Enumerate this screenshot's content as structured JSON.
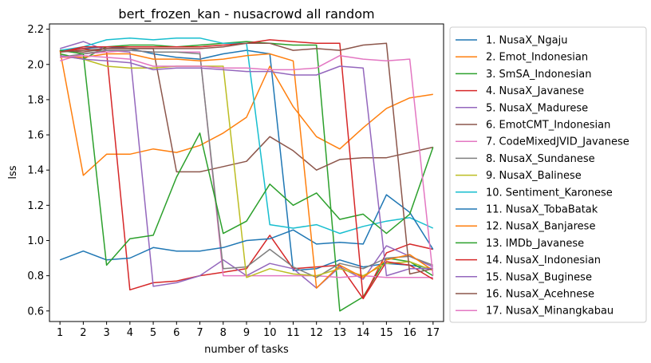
{
  "chart_data": {
    "type": "line",
    "title": "bert_frozen_kan - nusacrowd all random",
    "xlabel": "number of tasks",
    "ylabel": "lss",
    "x": [
      1,
      2,
      3,
      4,
      5,
      6,
      7,
      8,
      9,
      10,
      11,
      12,
      13,
      14,
      15,
      16,
      17
    ],
    "xlim": [
      0.55,
      17.45
    ],
    "ylim": [
      0.54,
      2.23
    ],
    "yticks": [
      0.6,
      0.8,
      1.0,
      1.2,
      1.4,
      1.6,
      1.8,
      2.0,
      2.2
    ],
    "ytick_labels": [
      "0.6",
      "0.8",
      "1.0",
      "1.2",
      "1.4",
      "1.6",
      "1.8",
      "2.0",
      "2.2"
    ],
    "grid": false,
    "legend_position": "outside-right",
    "series": [
      {
        "name": "1. NusaX_Ngaju",
        "color": "#1f77b4",
        "values": [
          2.08,
          2.09,
          2.1,
          2.09,
          2.06,
          2.04,
          2.03,
          2.06,
          2.08,
          2.06,
          0.83,
          0.84,
          0.89,
          0.85,
          0.87,
          0.86,
          0.84
        ]
      },
      {
        "name": "2. Emot_Indonesian",
        "color": "#ff7f0e",
        "values": [
          2.08,
          1.37,
          1.49,
          1.49,
          1.52,
          1.5,
          1.54,
          1.61,
          1.7,
          1.99,
          1.76,
          1.59,
          1.52,
          1.64,
          1.75,
          1.81,
          1.83
        ]
      },
      {
        "name": "3. SmSA_Indonesian",
        "color": "#2ca02c",
        "values": [
          2.06,
          2.03,
          2.1,
          2.11,
          2.11,
          2.1,
          2.11,
          2.12,
          2.13,
          2.12,
          2.11,
          2.11,
          0.6,
          0.68,
          0.9,
          0.88,
          0.8
        ]
      },
      {
        "name": "4. NusaX_Javanese",
        "color": "#d62728",
        "values": [
          2.07,
          2.09,
          2.07,
          0.72,
          0.76,
          0.77,
          0.8,
          0.82,
          0.84,
          1.03,
          0.84,
          0.85,
          0.86,
          0.67,
          0.93,
          0.98,
          0.95
        ]
      },
      {
        "name": "5. NusaX_Madurese",
        "color": "#9467bd",
        "values": [
          2.09,
          2.13,
          2.08,
          2.07,
          0.74,
          0.76,
          0.8,
          0.89,
          0.8,
          0.87,
          0.84,
          0.73,
          0.85,
          0.78,
          0.97,
          0.91,
          0.85
        ]
      },
      {
        "name": "6. EmotCMT_Indonesian",
        "color": "#8c564b",
        "values": [
          2.08,
          2.07,
          2.09,
          2.09,
          2.09,
          1.39,
          1.39,
          1.42,
          1.45,
          1.59,
          1.51,
          1.4,
          1.46,
          1.47,
          1.47,
          1.5,
          1.53
        ]
      },
      {
        "name": "7. CodeMixedJVID_Javanese",
        "color": "#e377c2",
        "values": [
          2.02,
          2.06,
          2.07,
          2.08,
          2.07,
          2.07,
          2.07,
          0.8,
          0.8,
          0.8,
          0.8,
          0.8,
          0.79,
          0.8,
          0.79,
          0.79,
          0.79
        ]
      },
      {
        "name": "8. NusaX_Sundanese",
        "color": "#7f7f7f",
        "values": [
          2.04,
          2.06,
          2.08,
          2.08,
          2.07,
          2.07,
          2.06,
          0.84,
          0.85,
          0.95,
          0.85,
          0.79,
          0.87,
          0.84,
          0.9,
          0.91,
          0.86
        ]
      },
      {
        "name": "9. NusaX_Balinese",
        "color": "#bcbd22",
        "values": [
          2.05,
          2.03,
          1.99,
          1.98,
          1.98,
          1.99,
          1.99,
          1.99,
          0.79,
          0.84,
          0.81,
          0.8,
          0.84,
          0.8,
          0.87,
          0.88,
          0.83
        ]
      },
      {
        "name": "10. Sentiment_Karonese",
        "color": "#17becf",
        "values": [
          2.08,
          2.1,
          2.14,
          2.15,
          2.14,
          2.15,
          2.15,
          2.12,
          2.12,
          1.09,
          1.07,
          1.09,
          1.04,
          1.08,
          1.11,
          1.13,
          1.07
        ]
      },
      {
        "name": "11. NusaX_TobaBatak",
        "color": "#1f77b4",
        "values": [
          0.89,
          0.94,
          0.89,
          0.9,
          0.96,
          0.94,
          0.94,
          0.96,
          1.0,
          1.01,
          1.06,
          0.98,
          0.99,
          0.98,
          1.26,
          1.16,
          0.95
        ]
      },
      {
        "name": "12. NusaX_Banjarese",
        "color": "#ff7f0e",
        "values": [
          2.04,
          2.04,
          2.06,
          2.06,
          2.03,
          2.03,
          2.02,
          2.03,
          2.05,
          2.06,
          2.02,
          0.73,
          0.86,
          0.79,
          0.89,
          0.92,
          0.83
        ]
      },
      {
        "name": "13. IMDb_Javanese",
        "color": "#2ca02c",
        "values": [
          2.08,
          2.06,
          0.86,
          1.01,
          1.03,
          1.36,
          1.61,
          1.04,
          1.11,
          1.32,
          1.2,
          1.27,
          1.12,
          1.15,
          1.04,
          1.15,
          1.53
        ]
      },
      {
        "name": "14. NusaX_Indonesian",
        "color": "#d62728",
        "values": [
          2.07,
          2.1,
          2.1,
          2.1,
          2.1,
          2.1,
          2.1,
          2.11,
          2.12,
          2.14,
          2.13,
          2.12,
          2.12,
          0.67,
          0.88,
          0.86,
          0.78
        ]
      },
      {
        "name": "15. NusaX_Buginese",
        "color": "#9467bd",
        "values": [
          2.05,
          2.03,
          2.02,
          2.01,
          1.97,
          1.98,
          1.98,
          1.97,
          1.96,
          1.96,
          1.94,
          1.94,
          1.99,
          1.98,
          0.8,
          0.84,
          0.84
        ]
      },
      {
        "name": "16. NusaX_Acehnese",
        "color": "#8c564b",
        "values": [
          2.07,
          2.08,
          2.09,
          2.09,
          2.09,
          2.09,
          2.09,
          2.1,
          2.12,
          2.12,
          2.08,
          2.09,
          2.08,
          2.11,
          2.12,
          0.81,
          0.84
        ]
      },
      {
        "name": "17. NusaX_Minangkabau",
        "color": "#e377c2",
        "values": [
          2.04,
          2.05,
          2.04,
          2.03,
          1.99,
          1.99,
          1.99,
          1.98,
          1.98,
          1.97,
          1.97,
          1.98,
          2.05,
          2.03,
          2.02,
          2.03,
          0.8
        ]
      }
    ]
  }
}
